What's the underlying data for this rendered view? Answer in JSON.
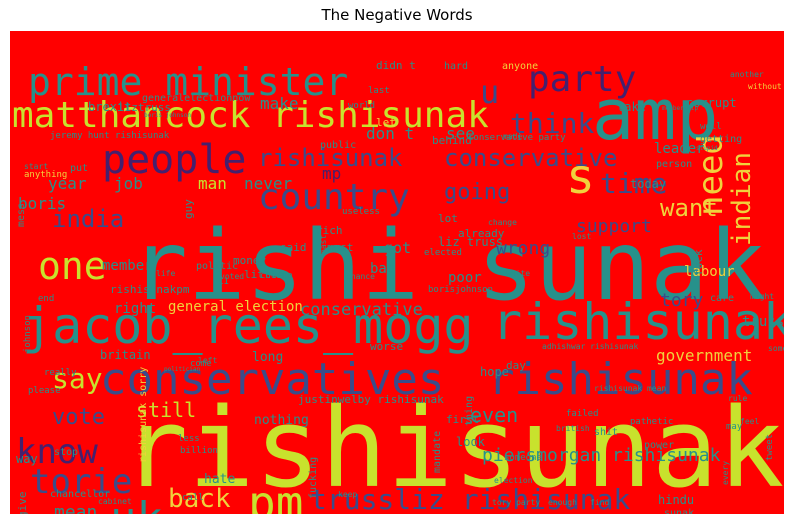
{
  "title": "The Negative Words",
  "chart_data": {
    "type": "wordcloud",
    "title": "The Negative Words",
    "background": "#ff0000",
    "palette": [
      "#c8e22d",
      "#27918b",
      "#3b4c8a",
      "#45206e",
      "#f0d23c",
      "#e8b23a"
    ],
    "words": [
      {
        "text": "rishisunak",
        "weight": 100,
        "color": "#c8e22d"
      },
      {
        "text": "rishi sunak",
        "weight": 95,
        "color": "#27918b"
      },
      {
        "text": "amp",
        "weight": 70,
        "color": "#27918b"
      },
      {
        "text": "jacob_rees_mogg",
        "weight": 55,
        "color": "#27918b"
      },
      {
        "text": "rishisunak",
        "weight": 52,
        "color": "#27918b"
      },
      {
        "text": "conservatives",
        "weight": 45,
        "color": "#3b4c8a"
      },
      {
        "text": "rishisunak",
        "weight": 44,
        "color": "#3b4c8a"
      },
      {
        "text": "pm",
        "weight": 42,
        "color": "#c8e22d"
      },
      {
        "text": "uk",
        "weight": 40,
        "color": "#27918b"
      },
      {
        "text": "s",
        "weight": 40,
        "color": "#f0d23c"
      },
      {
        "text": "matthancock rishisunak",
        "weight": 38,
        "color": "#c8e22d"
      },
      {
        "text": "prime minister",
        "weight": 36,
        "color": "#27918b"
      },
      {
        "text": "people",
        "weight": 36,
        "color": "#45206e"
      },
      {
        "text": "country",
        "weight": 34,
        "color": "#3b4c8a"
      },
      {
        "text": "one",
        "weight": 32,
        "color": "#c8e22d"
      },
      {
        "text": "party",
        "weight": 32,
        "color": "#45206e"
      },
      {
        "text": "u",
        "weight": 30,
        "color": "#3b4c8a"
      },
      {
        "text": "need",
        "weight": 30,
        "color": "#f0d23c"
      },
      {
        "text": "know",
        "weight": 28,
        "color": "#45206e"
      },
      {
        "text": "torie",
        "weight": 28,
        "color": "#3b4c8a"
      },
      {
        "text": "trussliz rishisunak",
        "weight": 27,
        "color": "#3b4c8a"
      },
      {
        "text": "think",
        "weight": 26,
        "color": "#3b4c8a"
      },
      {
        "text": "time",
        "weight": 26,
        "color": "#3b4c8a"
      },
      {
        "text": "indian",
        "weight": 24,
        "color": "#f0d23c"
      },
      {
        "text": "rishisunak",
        "weight": 24,
        "color": "#3b4c8a"
      },
      {
        "text": "conservative",
        "weight": 24,
        "color": "#3b4c8a"
      },
      {
        "text": "say",
        "weight": 24,
        "color": "#c8e22d"
      },
      {
        "text": "back",
        "weight": 22,
        "color": "#f0d23c"
      },
      {
        "text": "want",
        "weight": 22,
        "color": "#f0d23c"
      },
      {
        "text": "india",
        "weight": 20,
        "color": "#3b4c8a"
      },
      {
        "text": "going",
        "weight": 20,
        "color": "#3b4c8a"
      },
      {
        "text": "vote",
        "weight": 18,
        "color": "#3b4c8a"
      },
      {
        "text": "mean",
        "weight": 17,
        "color": "#27918b"
      },
      {
        "text": "still",
        "weight": 17,
        "color": "#c8e22d"
      },
      {
        "text": "even",
        "weight": 17,
        "color": "#27918b"
      },
      {
        "text": "least",
        "weight": 17,
        "color": "#27918b"
      },
      {
        "text": "piersmorgan rishisunak",
        "weight": 16,
        "color": "#27918b"
      },
      {
        "text": "shashitharoor rishisunak",
        "weight": 14,
        "color": "#27918b"
      },
      {
        "text": "wrong",
        "weight": 15,
        "color": "#3b4c8a"
      },
      {
        "text": "support",
        "weight": 15,
        "color": "#3b4c8a"
      },
      {
        "text": "tory",
        "weight": 15,
        "color": "#3b4c8a"
      },
      {
        "text": "government",
        "weight": 13,
        "color": "#f0d23c"
      },
      {
        "text": "conservative",
        "weight": 14,
        "color": "#27918b"
      },
      {
        "text": "general election",
        "weight": 13,
        "color": "#f0d23c"
      },
      {
        "text": "year",
        "weight": 14,
        "color": "#27918b"
      },
      {
        "text": "boris",
        "weight": 14,
        "color": "#27918b"
      },
      {
        "text": "job",
        "weight": 14,
        "color": "#27918b"
      },
      {
        "text": "man",
        "weight": 14,
        "color": "#c8e22d"
      },
      {
        "text": "never",
        "weight": 14,
        "color": "#27918b"
      },
      {
        "text": "mp",
        "weight": 14,
        "color": "#45206e"
      },
      {
        "text": "make",
        "weight": 13,
        "color": "#27918b"
      },
      {
        "text": "don t",
        "weight": 13,
        "color": "#27918b"
      },
      {
        "text": "see",
        "weight": 13,
        "color": "#27918b"
      },
      {
        "text": "leader",
        "weight": 12,
        "color": "#27918b"
      },
      {
        "text": "member",
        "weight": 12,
        "color": "#27918b"
      },
      {
        "text": "got",
        "weight": 12,
        "color": "#27918b"
      },
      {
        "text": "liz truss",
        "weight": 11,
        "color": "#27918b"
      },
      {
        "text": "labour",
        "weight": 12,
        "color": "#f0d23c"
      },
      {
        "text": "bad",
        "weight": 11,
        "color": "#27918b"
      },
      {
        "text": "poor",
        "weight": 11,
        "color": "#27918b"
      },
      {
        "text": "right",
        "weight": 11,
        "color": "#27918b"
      },
      {
        "text": "truss",
        "weight": 11,
        "color": "#27918b"
      },
      {
        "text": "britain",
        "weight": 10,
        "color": "#27918b"
      },
      {
        "text": "long",
        "weight": 10,
        "color": "#27918b"
      },
      {
        "text": "hope",
        "weight": 10,
        "color": "#27918b"
      },
      {
        "text": "look",
        "weight": 10,
        "color": "#27918b"
      },
      {
        "text": "nothing",
        "weight": 10,
        "color": "#27918b"
      },
      {
        "text": "justinwelby rishisunak",
        "weight": 9,
        "color": "#27918b"
      },
      {
        "text": "hate",
        "weight": 10,
        "color": "#27918b"
      },
      {
        "text": "economy",
        "weight": 9,
        "color": "#27918b"
      },
      {
        "text": "hindu",
        "weight": 9,
        "color": "#27918b"
      },
      {
        "text": "democracy",
        "weight": 9,
        "color": "#27918b"
      },
      {
        "text": "give",
        "weight": 9,
        "color": "#27918b"
      },
      {
        "text": "way",
        "weight": 9,
        "color": "#27918b"
      },
      {
        "text": "rishisunakpm",
        "weight": 9,
        "color": "#27918b"
      },
      {
        "text": "money",
        "weight": 9,
        "color": "#27918b"
      },
      {
        "text": "little",
        "weight": 9,
        "color": "#27918b"
      },
      {
        "text": "said",
        "weight": 9,
        "color": "#27918b"
      },
      {
        "text": "must",
        "weight": 9,
        "color": "#27918b"
      },
      {
        "text": "rich",
        "weight": 9,
        "color": "#27918b"
      },
      {
        "text": "already",
        "weight": 9,
        "color": "#27918b"
      },
      {
        "text": "lot",
        "weight": 9,
        "color": "#27918b"
      },
      {
        "text": "politic",
        "weight": 9,
        "color": "#27918b"
      },
      {
        "text": "mess",
        "weight": 8,
        "color": "#27918b"
      },
      {
        "text": "brexit",
        "weight": 8,
        "color": "#27918b"
      },
      {
        "text": "liztruss",
        "weight": 9,
        "color": "#27918b"
      },
      {
        "text": "didn t",
        "weight": 9,
        "color": "#27918b"
      },
      {
        "text": "let",
        "weight": 9,
        "color": "#f0d23c"
      },
      {
        "text": "behind",
        "weight": 9,
        "color": "#27918b"
      },
      {
        "text": "public",
        "weight": 9,
        "color": "#27918b"
      },
      {
        "text": "today",
        "weight": 8,
        "color": "#27918b"
      },
      {
        "text": "corrupt",
        "weight": 9,
        "color": "#27918b"
      },
      {
        "text": "take",
        "weight": 9,
        "color": "#27918b"
      },
      {
        "text": "guy",
        "weight": 9,
        "color": "#27918b"
      },
      {
        "text": "put",
        "weight": 9,
        "color": "#27918b"
      },
      {
        "text": "fuck",
        "weight": 8,
        "color": "#27918b"
      },
      {
        "text": "day",
        "weight": 9,
        "color": "#27918b"
      },
      {
        "text": "first",
        "weight": 8,
        "color": "#27918b"
      },
      {
        "text": "worse",
        "weight": 8,
        "color": "#27918b"
      },
      {
        "text": "failed",
        "weight": 8,
        "color": "#27918b"
      },
      {
        "text": "rishisunak mean",
        "weight": 7,
        "color": "#27918b"
      },
      {
        "text": "adhishwar rishisunak",
        "weight": 7,
        "color": "#27918b"
      },
      {
        "text": "jeremy hunt rishisunak",
        "weight": 7,
        "color": "#27918b"
      },
      {
        "text": "conservative party",
        "weight": 7,
        "color": "#27918b"
      },
      {
        "text": "generalelectionnow",
        "weight": 7,
        "color": "#27918b"
      },
      {
        "text": "rishisunak sorry",
        "weight": 7,
        "color": "#f0d23c"
      },
      {
        "text": "stop",
        "weight": 8,
        "color": "#27918b"
      },
      {
        "text": "chancellor",
        "weight": 8,
        "color": "#27918b"
      },
      {
        "text": "fucking",
        "weight": 8,
        "color": "#27918b"
      },
      {
        "text": "mandate",
        "weight": 8,
        "color": "#27918b"
      },
      {
        "text": "thing",
        "weight": 8,
        "color": "#27918b"
      },
      {
        "text": "shit",
        "weight": 8,
        "color": "#27918b"
      },
      {
        "text": "pathetic",
        "weight": 8,
        "color": "#27918b"
      },
      {
        "text": "power",
        "weight": 8,
        "color": "#27918b"
      },
      {
        "text": "someone",
        "weight": 8,
        "color": "#27918b"
      },
      {
        "text": "election",
        "weight": 8,
        "color": "#27918b"
      },
      {
        "text": "keep",
        "weight": 7,
        "color": "#27918b"
      },
      {
        "text": "tory party",
        "weight": 7,
        "color": "#27918b"
      },
      {
        "text": "find",
        "weight": 7,
        "color": "#27918b"
      },
      {
        "text": "enough",
        "weight": 7,
        "color": "#27918b"
      },
      {
        "text": "care",
        "weight": 7,
        "color": "#27918b"
      },
      {
        "text": "hard",
        "weight": 8,
        "color": "#27918b"
      },
      {
        "text": "anyone",
        "weight": 8,
        "color": "#f0d23c"
      },
      {
        "text": "another",
        "weight": 8,
        "color": "#27918b"
      },
      {
        "text": "without",
        "weight": 7,
        "color": "#f0d23c"
      },
      {
        "text": "anything",
        "weight": 7,
        "color": "#f0d23c"
      },
      {
        "text": "johnson",
        "weight": 7,
        "color": "#27918b"
      },
      {
        "text": "borisjohnson",
        "weight": 7,
        "color": "#27918b"
      },
      {
        "text": "elected",
        "weight": 7,
        "color": "#27918b"
      },
      {
        "text": "white",
        "weight": 7,
        "color": "#27918b"
      },
      {
        "text": "lost",
        "weight": 7,
        "color": "#27918b"
      },
      {
        "text": "change",
        "weight": 7,
        "color": "#27918b"
      },
      {
        "text": "start",
        "weight": 7,
        "color": "#27918b"
      },
      {
        "text": "made",
        "weight": 7,
        "color": "#27918b"
      },
      {
        "text": "world",
        "weight": 7,
        "color": "#27918b"
      },
      {
        "text": "useless",
        "weight": 7,
        "color": "#27918b"
      },
      {
        "text": "voted",
        "weight": 7,
        "color": "#27918b"
      },
      {
        "text": "chance",
        "weight": 7,
        "color": "#27918b"
      },
      {
        "text": "past",
        "weight": 7,
        "color": "#27918b"
      },
      {
        "text": "life",
        "weight": 7,
        "color": "#27918b"
      },
      {
        "text": "might",
        "weight": 7,
        "color": "#27918b"
      },
      {
        "text": "end",
        "weight": 7,
        "color": "#27918b"
      },
      {
        "text": "really",
        "weight": 7,
        "color": "#27918b"
      },
      {
        "text": "please",
        "weight": 7,
        "color": "#27918b"
      },
      {
        "text": "come",
        "weight": 7,
        "color": "#27918b"
      },
      {
        "text": "left",
        "weight": 7,
        "color": "#27918b"
      },
      {
        "text": "billion",
        "weight": 6,
        "color": "#27918b"
      },
      {
        "text": "less",
        "weight": 7,
        "color": "#27918b"
      },
      {
        "text": "british",
        "weight": 7,
        "color": "#27918b"
      },
      {
        "text": "may",
        "weight": 7,
        "color": "#27918b"
      },
      {
        "text": "feel",
        "weight": 7,
        "color": "#27918b"
      },
      {
        "text": "tweet",
        "weight": 7,
        "color": "#27918b"
      },
      {
        "text": "something",
        "weight": 7,
        "color": "#27918b"
      },
      {
        "text": "rule",
        "weight": 7,
        "color": "#27918b"
      },
      {
        "text": "every",
        "weight": 6,
        "color": "#27918b"
      },
      {
        "text": "cabinet",
        "weight": 6,
        "color": "#27918b"
      },
      {
        "text": "last",
        "weight": 6,
        "color": "#27918b"
      },
      {
        "text": "person",
        "weight": 8,
        "color": "#27918b"
      },
      {
        "text": "getting",
        "weight": 8,
        "color": "#27918b"
      },
      {
        "text": "well",
        "weight": 8,
        "color": "#27918b"
      },
      {
        "text": "membership",
        "weight": 5,
        "color": "#27918b"
      },
      {
        "text": "stupid",
        "weight": 5,
        "color": "#27918b"
      },
      {
        "text": "boris johnson",
        "weight": 5,
        "color": "#27918b"
      },
      {
        "text": "sunak",
        "weight": 7,
        "color": "#27918b"
      },
      {
        "text": "politician",
        "weight": 5,
        "color": "#27918b"
      },
      {
        "text": "11",
        "weight": 6,
        "color": "#27918b"
      },
      {
        "text": "call",
        "weight": 6,
        "color": "#27918b"
      },
      {
        "text": "choice",
        "weight": 7,
        "color": "#27918b"
      }
    ]
  }
}
